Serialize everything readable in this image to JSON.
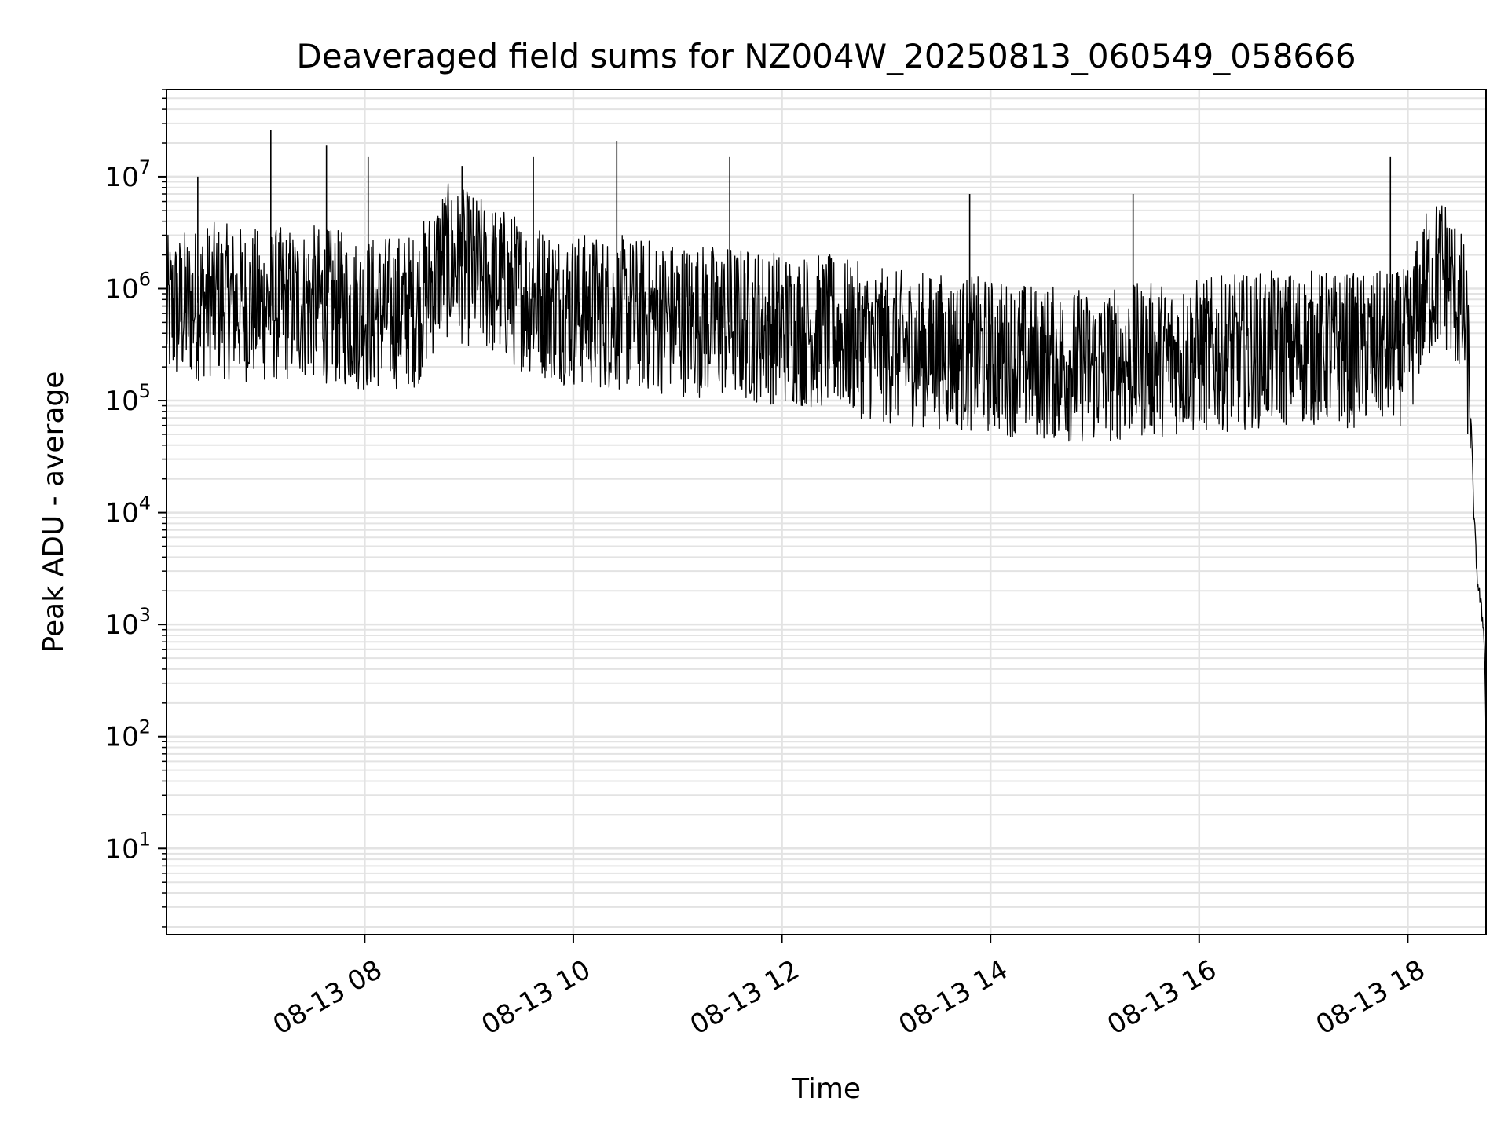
{
  "chart_data": {
    "type": "line",
    "title": "Deaveraged field sums for NZ004W_20250813_060549_058666",
    "xlabel": "Time",
    "ylabel": "Peak ADU - average",
    "yscale": "log",
    "ylim": [
      1.7,
      60000000
    ],
    "xlim": [
      "2025-08-13 06:06",
      "2025-08-13 18:45"
    ],
    "grid": true,
    "line_color": "#000000",
    "grid_color": "#e3e3e3",
    "x_ticks": [
      {
        "t": "2025-08-13 08:00",
        "label": "08-13 08"
      },
      {
        "t": "2025-08-13 10:00",
        "label": "08-13 10"
      },
      {
        "t": "2025-08-13 12:00",
        "label": "08-13 12"
      },
      {
        "t": "2025-08-13 14:00",
        "label": "08-13 14"
      },
      {
        "t": "2025-08-13 16:00",
        "label": "08-13 16"
      },
      {
        "t": "2025-08-13 18:00",
        "label": "08-13 18"
      }
    ],
    "y_ticks": [
      {
        "v": 10,
        "base": "10",
        "exp": "1"
      },
      {
        "v": 100,
        "base": "10",
        "exp": "2"
      },
      {
        "v": 1000,
        "base": "10",
        "exp": "3"
      },
      {
        "v": 10000,
        "base": "10",
        "exp": "4"
      },
      {
        "v": 100000,
        "base": "10",
        "exp": "5"
      },
      {
        "v": 1000000,
        "base": "10",
        "exp": "6"
      },
      {
        "v": 10000000,
        "base": "10",
        "exp": "7"
      }
    ],
    "series": [
      {
        "x": [
          "2025-08-13 06:06",
          "2025-08-13 06:30",
          "2025-08-13 07:00",
          "2025-08-13 07:30",
          "2025-08-13 08:00",
          "2025-08-13 08:30",
          "2025-08-13 08:45",
          "2025-08-13 09:00",
          "2025-08-13 09:30",
          "2025-08-13 10:00",
          "2025-08-13 10:30",
          "2025-08-13 11:00",
          "2025-08-13 11:30",
          "2025-08-13 12:00",
          "2025-08-13 12:30",
          "2025-08-13 13:00",
          "2025-08-13 13:30",
          "2025-08-13 14:00",
          "2025-08-13 14:30",
          "2025-08-13 15:00",
          "2025-08-13 15:30",
          "2025-08-13 16:00",
          "2025-08-13 16:30",
          "2025-08-13 17:00",
          "2025-08-13 17:30",
          "2025-08-13 18:00",
          "2025-08-13 18:10",
          "2025-08-13 18:20",
          "2025-08-13 18:28",
          "2025-08-13 18:33",
          "2025-08-13 18:36",
          "2025-08-13 18:38",
          "2025-08-13 18:40",
          "2025-08-13 18:42",
          "2025-08-13 18:44",
          "2025-08-13 18:45"
        ],
        "values": [
          600000,
          800000,
          700000,
          750000,
          600000,
          650000,
          1800000,
          1500000,
          900000,
          650000,
          600000,
          550000,
          500000,
          450000,
          400000,
          300000,
          280000,
          250000,
          220000,
          200000,
          230000,
          250000,
          280000,
          300000,
          280000,
          300000,
          1000000,
          1500000,
          900000,
          500000,
          100000,
          10000,
          2500,
          1500,
          800,
          100
        ]
      }
    ],
    "spikes": [
      [
        "2025-08-13 07:06",
        26000000
      ],
      [
        "2025-08-13 07:38",
        19000000
      ],
      [
        "2025-08-13 08:02",
        15000000
      ],
      [
        "2025-08-13 08:56",
        12500000
      ],
      [
        "2025-08-13 09:37",
        15000000
      ],
      [
        "2025-08-13 10:25",
        21000000
      ],
      [
        "2025-08-13 11:30",
        15000000
      ],
      [
        "2025-08-13 13:48",
        7000000
      ],
      [
        "2025-08-13 15:22",
        7000000
      ],
      [
        "2025-08-13 17:50",
        15000000
      ],
      [
        "2025-08-13 06:24",
        10000000
      ]
    ]
  }
}
